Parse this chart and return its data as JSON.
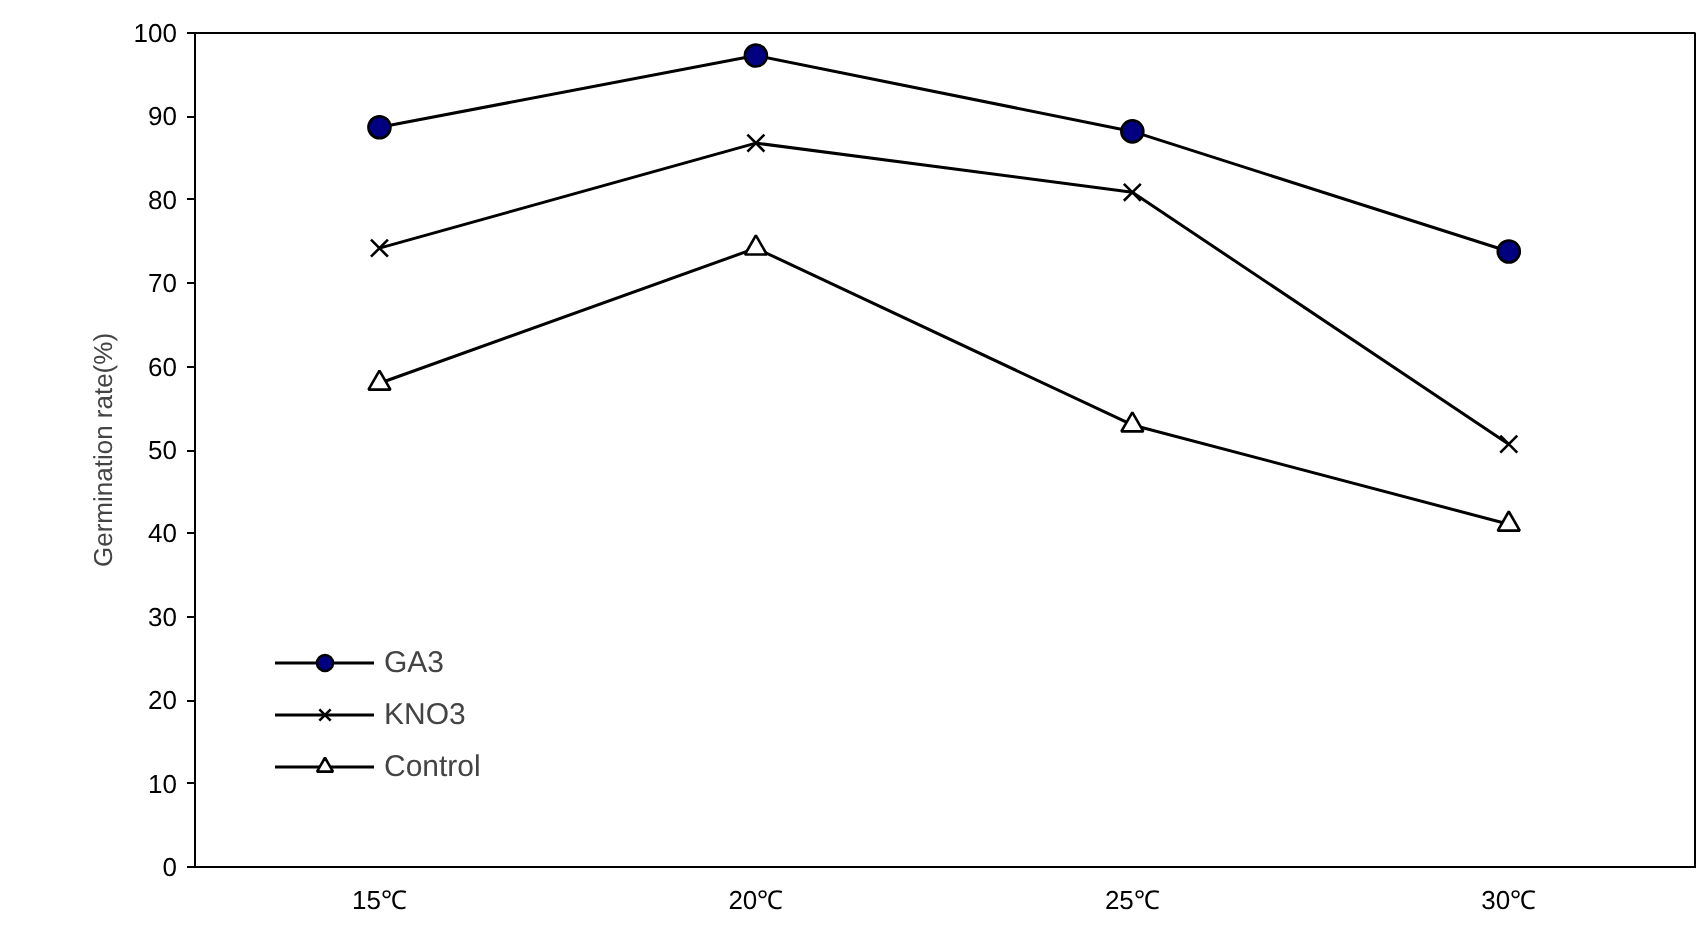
{
  "chart_data": {
    "type": "line",
    "ylabel": "Germination rate(%)",
    "categories": [
      "15℃",
      "20℃",
      "25℃",
      "30℃"
    ],
    "ylim": [
      0,
      100
    ],
    "yticks": [
      0,
      10,
      20,
      30,
      40,
      50,
      60,
      70,
      80,
      90,
      100
    ],
    "grid": false,
    "legend": "bottom left",
    "series": [
      {
        "name": "GA3",
        "color": "#000080",
        "marker": "circle",
        "values": [
          88.7,
          97.3,
          88.2,
          73.8
        ]
      },
      {
        "name": "KNO3",
        "color": "#000000",
        "marker": "cross",
        "values": [
          74.2,
          86.8,
          80.9,
          50.7
        ]
      },
      {
        "name": "Control",
        "color": "#ffffff",
        "marker": "triangle",
        "values": [
          58.0,
          74.2,
          53.0,
          41.1
        ]
      }
    ]
  }
}
